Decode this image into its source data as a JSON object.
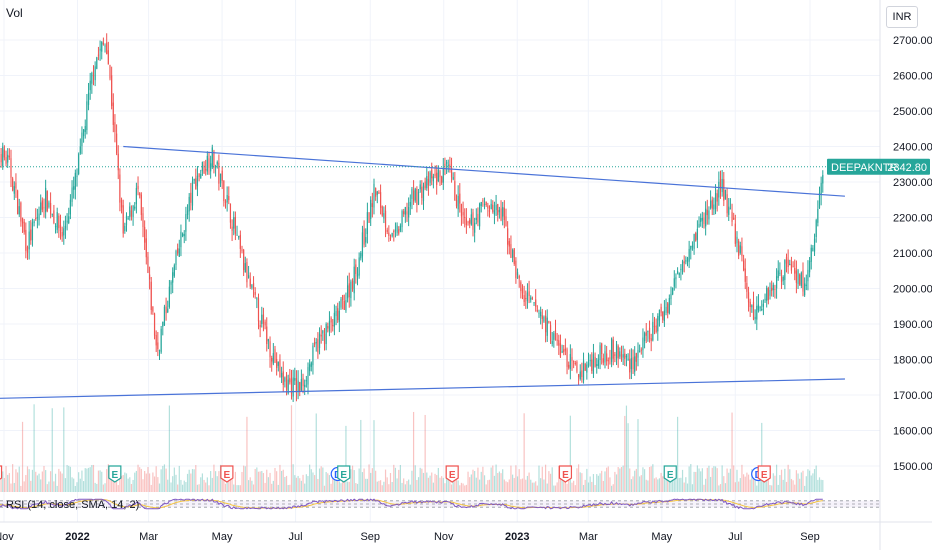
{
  "header": {
    "indicator_label": "Vol",
    "currency": "INR"
  },
  "rsi": {
    "legend": "RSI (14, close, SMA, 14, 2)"
  },
  "price_tag": {
    "symbol": "DEEPAKNTR",
    "value": "2342.80"
  },
  "colors": {
    "up": "#26a69a",
    "down": "#ef5350",
    "trendline": "#4a73d8",
    "rsi_line": "#7e57c2",
    "rsi_ma": "#f5c542",
    "tag_bg": "#26a69a"
  },
  "chart_data": {
    "type": "candlestick",
    "symbol": "DEEPAKNTR",
    "currency": "INR",
    "last_price": 2342.8,
    "ylim": [
      1430,
      2750
    ],
    "y_ticks": [
      "2700.00",
      "2600.00",
      "2500.00",
      "2400.00",
      "2300.00",
      "2200.00",
      "2100.00",
      "2000.00",
      "1900.00",
      "1800.00",
      "1700.00",
      "1600.00",
      "1500.00"
    ],
    "x_ticks": [
      {
        "label": "Nov",
        "date": "2021-11",
        "bold": false
      },
      {
        "label": "2022",
        "date": "2022-01",
        "bold": true
      },
      {
        "label": "Mar",
        "date": "2022-03",
        "bold": false
      },
      {
        "label": "May",
        "date": "2022-05",
        "bold": false
      },
      {
        "label": "Jul",
        "date": "2022-07",
        "bold": false
      },
      {
        "label": "Sep",
        "date": "2022-09",
        "bold": false
      },
      {
        "label": "Nov",
        "date": "2022-11",
        "bold": false
      },
      {
        "label": "2023",
        "date": "2023-01",
        "bold": true
      },
      {
        "label": "Mar",
        "date": "2023-03",
        "bold": false
      },
      {
        "label": "May",
        "date": "2023-05",
        "bold": false
      },
      {
        "label": "Jul",
        "date": "2023-07",
        "bold": false
      },
      {
        "label": "Sep",
        "date": "2023-09",
        "bold": false
      }
    ],
    "price_path": [
      [
        "2021-10-20",
        2430
      ],
      [
        "2021-11-05",
        2350
      ],
      [
        "2021-11-20",
        2120
      ],
      [
        "2021-12-05",
        2260
      ],
      [
        "2021-12-20",
        2150
      ],
      [
        "2022-01-01",
        2330
      ],
      [
        "2022-01-15",
        2640
      ],
      [
        "2022-01-25",
        2700
      ],
      [
        "2022-02-08",
        2150
      ],
      [
        "2022-02-20",
        2280
      ],
      [
        "2022-03-08",
        1820
      ],
      [
        "2022-03-22",
        2050
      ],
      [
        "2022-04-08",
        2300
      ],
      [
        "2022-04-22",
        2380
      ],
      [
        "2022-05-05",
        2250
      ],
      [
        "2022-05-20",
        2050
      ],
      [
        "2022-06-05",
        1880
      ],
      [
        "2022-06-20",
        1740
      ],
      [
        "2022-07-05",
        1720
      ],
      [
        "2022-07-20",
        1850
      ],
      [
        "2022-08-05",
        1920
      ],
      [
        "2022-08-20",
        2050
      ],
      [
        "2022-09-05",
        2280
      ],
      [
        "2022-09-20",
        2130
      ],
      [
        "2022-10-05",
        2250
      ],
      [
        "2022-10-20",
        2300
      ],
      [
        "2022-11-05",
        2330
      ],
      [
        "2022-11-20",
        2160
      ],
      [
        "2022-12-05",
        2240
      ],
      [
        "2022-12-20",
        2200
      ],
      [
        "2023-01-05",
        1980
      ],
      [
        "2023-01-20",
        1930
      ],
      [
        "2023-02-05",
        1830
      ],
      [
        "2023-02-20",
        1760
      ],
      [
        "2023-03-05",
        1800
      ],
      [
        "2023-03-20",
        1830
      ],
      [
        "2023-04-05",
        1790
      ],
      [
        "2023-04-20",
        1860
      ],
      [
        "2023-05-05",
        1950
      ],
      [
        "2023-05-20",
        2100
      ],
      [
        "2023-06-05",
        2200
      ],
      [
        "2023-06-20",
        2290
      ],
      [
        "2023-07-05",
        2100
      ],
      [
        "2023-07-15",
        1920
      ],
      [
        "2023-07-30",
        2000
      ],
      [
        "2023-08-15",
        2080
      ],
      [
        "2023-08-28",
        2000
      ],
      [
        "2023-09-05",
        2150
      ],
      [
        "2023-09-12",
        2342.8
      ]
    ],
    "trendlines": [
      {
        "name": "upper",
        "from": [
          "2022-02-08",
          2400
        ],
        "to": [
          "2023-09-30",
          2260
        ]
      },
      {
        "name": "lower",
        "from": [
          "2021-10-20",
          1690
        ],
        "to": [
          "2023-09-30",
          1745
        ]
      }
    ],
    "earnings_markers": [
      {
        "date": "2021-10-25",
        "type": "E",
        "color": "red"
      },
      {
        "date": "2022-02-01",
        "type": "E",
        "color": "green"
      },
      {
        "date": "2022-05-05",
        "type": "E",
        "color": "red"
      },
      {
        "date": "2022-08-05",
        "type": "D",
        "color": "blue"
      },
      {
        "date": "2022-08-10",
        "type": "E",
        "color": "green"
      },
      {
        "date": "2022-11-08",
        "type": "E",
        "color": "red"
      },
      {
        "date": "2023-02-10",
        "type": "E",
        "color": "red"
      },
      {
        "date": "2023-05-08",
        "type": "E",
        "color": "green"
      },
      {
        "date": "2023-07-20",
        "type": "D",
        "color": "blue"
      },
      {
        "date": "2023-07-25",
        "type": "E",
        "color": "red"
      }
    ]
  }
}
